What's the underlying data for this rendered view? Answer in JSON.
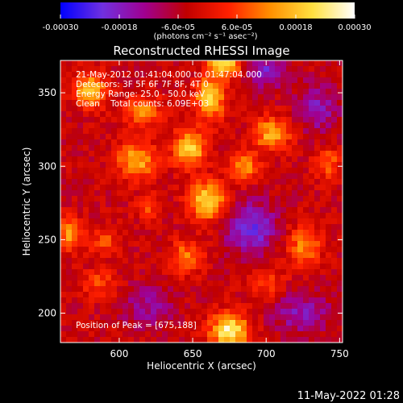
{
  "chart_data": {
    "type": "heatmap",
    "title": "Reconstructed RHESSI Image",
    "xlabel": "Heliocentric X (arcsec)",
    "ylabel": "Heliocentric Y (arcsec)",
    "xlim": [
      560,
      752
    ],
    "ylim": [
      180,
      372
    ],
    "x_ticks": [
      600,
      650,
      700,
      750
    ],
    "y_ticks": [
      200,
      250,
      300,
      350
    ],
    "colorbar": {
      "range": [
        -0.0003,
        0.0003
      ],
      "tick_values": [
        -0.0003,
        -0.00018,
        -6e-05,
        6e-05,
        0.00018,
        0.0003
      ],
      "tick_labels": [
        "-0.00030",
        "-0.00018",
        "-6.0e-05",
        "6.0e-05",
        "0.00018",
        "0.00030"
      ],
      "units": "(photons cm⁻² s⁻¹ asec⁻²)",
      "colors": [
        "#0000ff",
        "#7030e0",
        "#a00090",
        "#c00000",
        "#ff2000",
        "#ff9000",
        "#ffe040",
        "#ffffff"
      ]
    },
    "annotations": [
      "21-May-2012 01:41:04.000 to 01:47:04.000",
      "Detectors: 3F 5F 6F 7F 8F, 4T 0",
      "Energy Range: 25.0 - 50.0 keV",
      "Clean    Total counts: 6.09E+03"
    ],
    "peak": {
      "label": "Position of Peak = [675,188]",
      "x": 675,
      "y": 188
    },
    "hotspots": [
      {
        "x": 675,
        "y": 188,
        "value": 0.0003,
        "sx": 9,
        "sy": 8
      },
      {
        "x": 580,
        "y": 352,
        "value": 0.00022,
        "sx": 8,
        "sy": 8
      },
      {
        "x": 616,
        "y": 338,
        "value": 0.00018,
        "sx": 9,
        "sy": 7
      },
      {
        "x": 648,
        "y": 312,
        "value": 0.00024,
        "sx": 8,
        "sy": 9
      },
      {
        "x": 612,
        "y": 304,
        "value": 0.0002,
        "sx": 10,
        "sy": 9
      },
      {
        "x": 662,
        "y": 346,
        "value": 0.00025,
        "sx": 7,
        "sy": 10
      },
      {
        "x": 672,
        "y": 370,
        "value": 0.00026,
        "sx": 8,
        "sy": 6
      },
      {
        "x": 660,
        "y": 276,
        "value": 0.00026,
        "sx": 9,
        "sy": 9
      },
      {
        "x": 704,
        "y": 322,
        "value": 0.0002,
        "sx": 9,
        "sy": 8
      },
      {
        "x": 685,
        "y": 300,
        "value": 0.00018,
        "sx": 7,
        "sy": 7
      },
      {
        "x": 646,
        "y": 238,
        "value": 0.00016,
        "sx": 8,
        "sy": 8
      },
      {
        "x": 566,
        "y": 254,
        "value": 0.00018,
        "sx": 6,
        "sy": 8
      },
      {
        "x": 590,
        "y": 248,
        "value": 0.00012,
        "sx": 7,
        "sy": 6
      },
      {
        "x": 726,
        "y": 246,
        "value": 0.00016,
        "sx": 8,
        "sy": 10
      },
      {
        "x": 742,
        "y": 302,
        "value": 0.00012,
        "sx": 7,
        "sy": 8
      },
      {
        "x": 586,
        "y": 220,
        "value": 0.0001,
        "sx": 9,
        "sy": 7
      },
      {
        "x": 620,
        "y": 272,
        "value": 0.0001,
        "sx": 6,
        "sy": 6
      },
      {
        "x": 700,
        "y": 220,
        "value": 0.0001,
        "sx": 9,
        "sy": 8
      }
    ],
    "coldspots": [
      {
        "x": 690,
        "y": 258,
        "value": -0.00018,
        "sx": 12,
        "sy": 12
      },
      {
        "x": 724,
        "y": 200,
        "value": -0.00012,
        "sx": 14,
        "sy": 10
      },
      {
        "x": 620,
        "y": 205,
        "value": -0.0001,
        "sx": 12,
        "sy": 10
      },
      {
        "x": 735,
        "y": 340,
        "value": -0.00012,
        "sx": 10,
        "sy": 12
      },
      {
        "x": 700,
        "y": 365,
        "value": -0.00014,
        "sx": 10,
        "sy": 8
      }
    ]
  },
  "footer": {
    "timestamp": "11-May-2022 01:28"
  }
}
